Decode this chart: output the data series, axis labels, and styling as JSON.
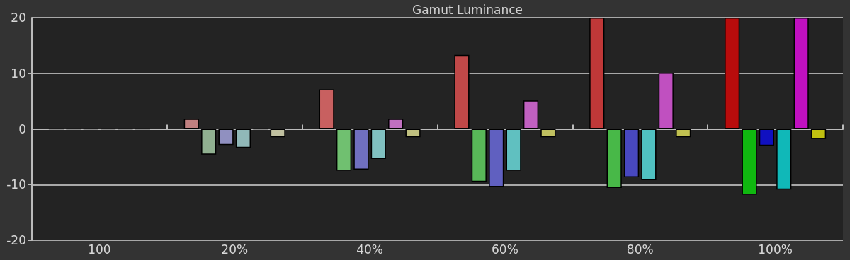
{
  "chart_data": {
    "type": "bar",
    "title": "Gamut Luminance",
    "categories": [
      "100",
      "20%",
      "40%",
      "60%",
      "80%",
      "100%"
    ],
    "series": [
      {
        "colors": [
          "#000000",
          "#c08080",
          "#c86060",
          "#c04848",
          "#c03838",
          "#b80c0c"
        ],
        "values": [
          0,
          1.8,
          7.1,
          13.3,
          20,
          20
        ]
      },
      {
        "colors": [
          "#000000",
          "#90b090",
          "#70c070",
          "#58b858",
          "#48b848",
          "#10b810"
        ],
        "values": [
          0,
          -4.6,
          -7.5,
          -9.5,
          -10.6,
          -11.8
        ]
      },
      {
        "colors": [
          "#000000",
          "#9090c0",
          "#7070c0",
          "#6060c0",
          "#4848c0",
          "#1010c0"
        ],
        "values": [
          0,
          -2.9,
          -7.3,
          -10.4,
          -8.7,
          -3.0
        ]
      },
      {
        "colors": [
          "#000000",
          "#90b8b8",
          "#80c0c0",
          "#60c0c0",
          "#50c0c0",
          "#10b8b8"
        ],
        "values": [
          0,
          -3.4,
          -5.4,
          -7.5,
          -9.2,
          -10.9
        ]
      },
      {
        "colors": [
          "#000000",
          "#000000",
          "#c070c0",
          "#c060c0",
          "#c050c0",
          "#c010c0"
        ],
        "values": [
          0,
          0,
          1.8,
          5.1,
          10.1,
          20
        ]
      },
      {
        "colors": [
          "#000000",
          "#c0c0a0",
          "#c0c080",
          "#c0c060",
          "#c0c050",
          "#c0c010"
        ],
        "values": [
          0,
          -1.5,
          -1.5,
          -1.5,
          -1.5,
          -1.8
        ]
      }
    ],
    "ylim": [
      -20,
      20
    ],
    "yticks": [
      -20,
      -10,
      0,
      10,
      20
    ],
    "grid": "y"
  }
}
